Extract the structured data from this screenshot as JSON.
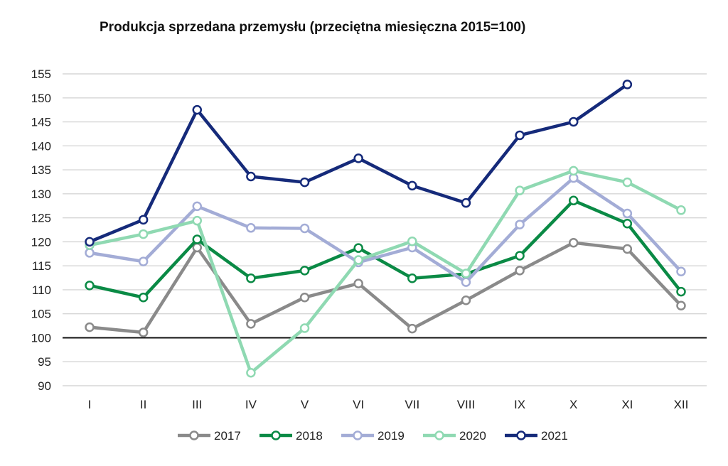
{
  "chart_data": {
    "type": "line",
    "title": "Produkcja sprzedana przemysłu (przeciętna miesięczna 2015=100)",
    "categories": [
      "I",
      "II",
      "III",
      "IV",
      "V",
      "VI",
      "VII",
      "VIII",
      "IX",
      "X",
      "XI",
      "XII"
    ],
    "ylim": [
      90,
      155
    ],
    "yticks": [
      90,
      95,
      100,
      105,
      110,
      115,
      120,
      125,
      130,
      135,
      140,
      145,
      150,
      155
    ],
    "reference_line": 100,
    "grid": true,
    "legend_position": "bottom",
    "series": [
      {
        "name": "2017",
        "color": "#8a8a8a",
        "values": [
          102.2,
          101.1,
          118.8,
          102.9,
          108.4,
          111.3,
          101.9,
          107.8,
          114.0,
          119.8,
          118.5,
          106.7
        ]
      },
      {
        "name": "2018",
        "color": "#0a8a45",
        "values": [
          110.9,
          108.4,
          120.5,
          112.4,
          114.0,
          118.7,
          112.4,
          113.3,
          117.1,
          128.6,
          123.8,
          109.6
        ]
      },
      {
        "name": "2019",
        "color": "#a3acd6",
        "values": [
          117.7,
          115.9,
          127.4,
          122.9,
          122.8,
          115.7,
          118.8,
          111.6,
          123.6,
          133.3,
          125.9,
          113.8
        ]
      },
      {
        "name": "2020",
        "color": "#8fd9b2",
        "values": [
          119.3,
          121.6,
          124.4,
          92.7,
          102.0,
          116.2,
          120.1,
          113.4,
          130.7,
          134.8,
          132.4,
          126.6
        ]
      },
      {
        "name": "2021",
        "color": "#152a7a",
        "values": [
          120.0,
          124.6,
          147.5,
          133.6,
          132.4,
          137.4,
          131.7,
          128.1,
          142.2,
          145.0,
          152.8,
          null
        ]
      }
    ]
  }
}
